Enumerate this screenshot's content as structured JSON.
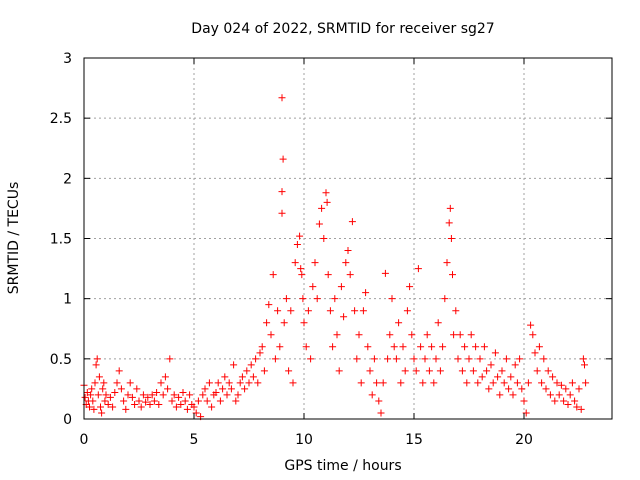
{
  "chart_data": {
    "type": "scatter",
    "title": "Day 024 of 2022, SRMTID for receiver sg27",
    "xlabel": "GPS time / hours",
    "ylabel": "SRMTID / TECUs",
    "xlim": [
      0,
      24
    ],
    "ylim": [
      0,
      3
    ],
    "xticks": [
      0,
      5,
      10,
      15,
      20
    ],
    "yticks": [
      0,
      0.5,
      1,
      1.5,
      2,
      2.5,
      3
    ],
    "xtick_labels": [
      "0",
      "5",
      "10",
      "15",
      "20"
    ],
    "ytick_labels": [
      "0",
      "0.5",
      "1",
      "1.5",
      "2",
      "2.5",
      "3"
    ],
    "grid": true,
    "marker": "+",
    "color": "#ff0000",
    "series": [
      {
        "name": "SRMTID",
        "points": [
          [
            0.0,
            0.28
          ],
          [
            0.05,
            0.18
          ],
          [
            0.1,
            0.12
          ],
          [
            0.15,
            0.22
          ],
          [
            0.2,
            0.15
          ],
          [
            0.25,
            0.1
          ],
          [
            0.3,
            0.2
          ],
          [
            0.35,
            0.25
          ],
          [
            0.4,
            0.15
          ],
          [
            0.45,
            0.08
          ],
          [
            0.5,
            0.3
          ],
          [
            0.55,
            0.45
          ],
          [
            0.6,
            0.5
          ],
          [
            0.65,
            0.2
          ],
          [
            0.7,
            0.35
          ],
          [
            0.75,
            0.1
          ],
          [
            0.8,
            0.05
          ],
          [
            0.85,
            0.25
          ],
          [
            0.9,
            0.3
          ],
          [
            0.95,
            0.15
          ],
          [
            1.0,
            0.2
          ],
          [
            1.1,
            0.12
          ],
          [
            1.2,
            0.18
          ],
          [
            1.3,
            0.1
          ],
          [
            1.4,
            0.22
          ],
          [
            1.5,
            0.3
          ],
          [
            1.6,
            0.4
          ],
          [
            1.7,
            0.25
          ],
          [
            1.8,
            0.15
          ],
          [
            1.9,
            0.08
          ],
          [
            2.0,
            0.2
          ],
          [
            2.1,
            0.3
          ],
          [
            2.2,
            0.18
          ],
          [
            2.3,
            0.12
          ],
          [
            2.4,
            0.25
          ],
          [
            2.5,
            0.15
          ],
          [
            2.6,
            0.1
          ],
          [
            2.7,
            0.2
          ],
          [
            2.8,
            0.14
          ],
          [
            2.9,
            0.18
          ],
          [
            3.0,
            0.12
          ],
          [
            3.1,
            0.2
          ],
          [
            3.2,
            0.15
          ],
          [
            3.3,
            0.22
          ],
          [
            3.4,
            0.12
          ],
          [
            3.5,
            0.3
          ],
          [
            3.6,
            0.2
          ],
          [
            3.7,
            0.35
          ],
          [
            3.8,
            0.25
          ],
          [
            3.9,
            0.5
          ],
          [
            4.0,
            0.15
          ],
          [
            4.1,
            0.2
          ],
          [
            4.2,
            0.1
          ],
          [
            4.3,
            0.18
          ],
          [
            4.4,
            0.12
          ],
          [
            4.5,
            0.22
          ],
          [
            4.6,
            0.15
          ],
          [
            4.7,
            0.08
          ],
          [
            4.8,
            0.2
          ],
          [
            4.9,
            0.12
          ],
          [
            5.0,
            0.1
          ],
          [
            5.1,
            0.05
          ],
          [
            5.2,
            0.15
          ],
          [
            5.3,
            0.02
          ],
          [
            5.4,
            0.2
          ],
          [
            5.5,
            0.25
          ],
          [
            5.6,
            0.15
          ],
          [
            5.7,
            0.3
          ],
          [
            5.8,
            0.1
          ],
          [
            5.9,
            0.2
          ],
          [
            6.0,
            0.22
          ],
          [
            6.1,
            0.3
          ],
          [
            6.2,
            0.15
          ],
          [
            6.3,
            0.25
          ],
          [
            6.4,
            0.35
          ],
          [
            6.5,
            0.2
          ],
          [
            6.6,
            0.3
          ],
          [
            6.7,
            0.25
          ],
          [
            6.8,
            0.45
          ],
          [
            6.9,
            0.15
          ],
          [
            7.0,
            0.2
          ],
          [
            7.1,
            0.3
          ],
          [
            7.2,
            0.35
          ],
          [
            7.3,
            0.25
          ],
          [
            7.4,
            0.4
          ],
          [
            7.5,
            0.3
          ],
          [
            7.6,
            0.45
          ],
          [
            7.7,
            0.35
          ],
          [
            7.8,
            0.5
          ],
          [
            7.9,
            0.3
          ],
          [
            8.0,
            0.55
          ],
          [
            8.1,
            0.6
          ],
          [
            8.2,
            0.4
          ],
          [
            8.3,
            0.8
          ],
          [
            8.4,
            0.95
          ],
          [
            8.5,
            0.7
          ],
          [
            8.6,
            1.2
          ],
          [
            8.7,
            0.5
          ],
          [
            8.8,
            0.9
          ],
          [
            8.9,
            0.6
          ],
          [
            9.0,
            2.67
          ],
          [
            9.05,
            2.16
          ],
          [
            9.0,
            1.89
          ],
          [
            9.0,
            1.71
          ],
          [
            9.1,
            0.8
          ],
          [
            9.2,
            1.0
          ],
          [
            9.3,
            0.4
          ],
          [
            9.4,
            0.9
          ],
          [
            9.5,
            0.3
          ],
          [
            9.6,
            1.3
          ],
          [
            9.7,
            1.45
          ],
          [
            9.8,
            1.52
          ],
          [
            9.85,
            1.25
          ],
          [
            9.9,
            1.2
          ],
          [
            9.95,
            1.0
          ],
          [
            10.0,
            0.8
          ],
          [
            10.1,
            0.6
          ],
          [
            10.2,
            0.9
          ],
          [
            10.3,
            0.5
          ],
          [
            10.4,
            1.1
          ],
          [
            10.5,
            1.3
          ],
          [
            10.6,
            1.0
          ],
          [
            10.7,
            1.62
          ],
          [
            10.8,
            1.75
          ],
          [
            10.9,
            1.5
          ],
          [
            11.0,
            1.88
          ],
          [
            11.05,
            1.8
          ],
          [
            11.1,
            1.2
          ],
          [
            11.2,
            0.9
          ],
          [
            11.3,
            0.6
          ],
          [
            11.4,
            1.0
          ],
          [
            11.5,
            0.7
          ],
          [
            11.6,
            0.4
          ],
          [
            11.7,
            1.1
          ],
          [
            11.8,
            0.85
          ],
          [
            11.9,
            1.3
          ],
          [
            12.0,
            1.4
          ],
          [
            12.1,
            1.2
          ],
          [
            12.2,
            1.64
          ],
          [
            12.3,
            0.9
          ],
          [
            12.4,
            0.5
          ],
          [
            12.5,
            0.7
          ],
          [
            12.6,
            0.3
          ],
          [
            12.7,
            0.9
          ],
          [
            12.8,
            1.05
          ],
          [
            12.9,
            0.6
          ],
          [
            13.0,
            0.4
          ],
          [
            13.1,
            0.2
          ],
          [
            13.2,
            0.5
          ],
          [
            13.3,
            0.3
          ],
          [
            13.4,
            0.15
          ],
          [
            13.5,
            0.05
          ],
          [
            13.6,
            0.3
          ],
          [
            13.7,
            1.21
          ],
          [
            13.8,
            0.5
          ],
          [
            13.9,
            0.7
          ],
          [
            14.0,
            1.0
          ],
          [
            14.1,
            0.6
          ],
          [
            14.2,
            0.5
          ],
          [
            14.3,
            0.8
          ],
          [
            14.4,
            0.3
          ],
          [
            14.5,
            0.6
          ],
          [
            14.6,
            0.4
          ],
          [
            14.7,
            0.9
          ],
          [
            14.8,
            1.1
          ],
          [
            14.9,
            0.7
          ],
          [
            15.0,
            0.5
          ],
          [
            15.1,
            0.4
          ],
          [
            15.2,
            1.25
          ],
          [
            15.3,
            0.6
          ],
          [
            15.4,
            0.3
          ],
          [
            15.5,
            0.5
          ],
          [
            15.6,
            0.7
          ],
          [
            15.7,
            0.4
          ],
          [
            15.8,
            0.6
          ],
          [
            15.9,
            0.3
          ],
          [
            16.0,
            0.5
          ],
          [
            16.1,
            0.8
          ],
          [
            16.2,
            0.4
          ],
          [
            16.3,
            0.6
          ],
          [
            16.4,
            1.0
          ],
          [
            16.5,
            1.3
          ],
          [
            16.6,
            1.63
          ],
          [
            16.65,
            1.75
          ],
          [
            16.7,
            1.5
          ],
          [
            16.75,
            1.2
          ],
          [
            16.8,
            0.7
          ],
          [
            16.9,
            0.9
          ],
          [
            17.0,
            0.5
          ],
          [
            17.1,
            0.7
          ],
          [
            17.2,
            0.4
          ],
          [
            17.3,
            0.6
          ],
          [
            17.4,
            0.3
          ],
          [
            17.5,
            0.5
          ],
          [
            17.6,
            0.7
          ],
          [
            17.7,
            0.4
          ],
          [
            17.8,
            0.6
          ],
          [
            17.9,
            0.3
          ],
          [
            18.0,
            0.5
          ],
          [
            18.1,
            0.35
          ],
          [
            18.2,
            0.6
          ],
          [
            18.3,
            0.4
          ],
          [
            18.4,
            0.25
          ],
          [
            18.5,
            0.45
          ],
          [
            18.6,
            0.3
          ],
          [
            18.7,
            0.55
          ],
          [
            18.8,
            0.35
          ],
          [
            18.9,
            0.2
          ],
          [
            19.0,
            0.4
          ],
          [
            19.1,
            0.3
          ],
          [
            19.2,
            0.5
          ],
          [
            19.3,
            0.25
          ],
          [
            19.4,
            0.35
          ],
          [
            19.5,
            0.2
          ],
          [
            19.6,
            0.45
          ],
          [
            19.7,
            0.3
          ],
          [
            19.8,
            0.5
          ],
          [
            19.9,
            0.25
          ],
          [
            20.0,
            0.15
          ],
          [
            20.1,
            0.05
          ],
          [
            20.2,
            0.3
          ],
          [
            20.3,
            0.78
          ],
          [
            20.4,
            0.7
          ],
          [
            20.5,
            0.55
          ],
          [
            20.6,
            0.4
          ],
          [
            20.7,
            0.6
          ],
          [
            20.8,
            0.3
          ],
          [
            20.9,
            0.5
          ],
          [
            21.0,
            0.25
          ],
          [
            21.1,
            0.4
          ],
          [
            21.2,
            0.2
          ],
          [
            21.3,
            0.35
          ],
          [
            21.4,
            0.15
          ],
          [
            21.5,
            0.3
          ],
          [
            21.6,
            0.2
          ],
          [
            21.7,
            0.28
          ],
          [
            21.8,
            0.15
          ],
          [
            21.9,
            0.25
          ],
          [
            22.0,
            0.12
          ],
          [
            22.1,
            0.2
          ],
          [
            22.2,
            0.3
          ],
          [
            22.3,
            0.15
          ],
          [
            22.4,
            0.1
          ],
          [
            22.5,
            0.25
          ],
          [
            22.6,
            0.08
          ],
          [
            22.7,
            0.5
          ],
          [
            22.75,
            0.45
          ],
          [
            22.8,
            0.3
          ]
        ]
      }
    ]
  }
}
